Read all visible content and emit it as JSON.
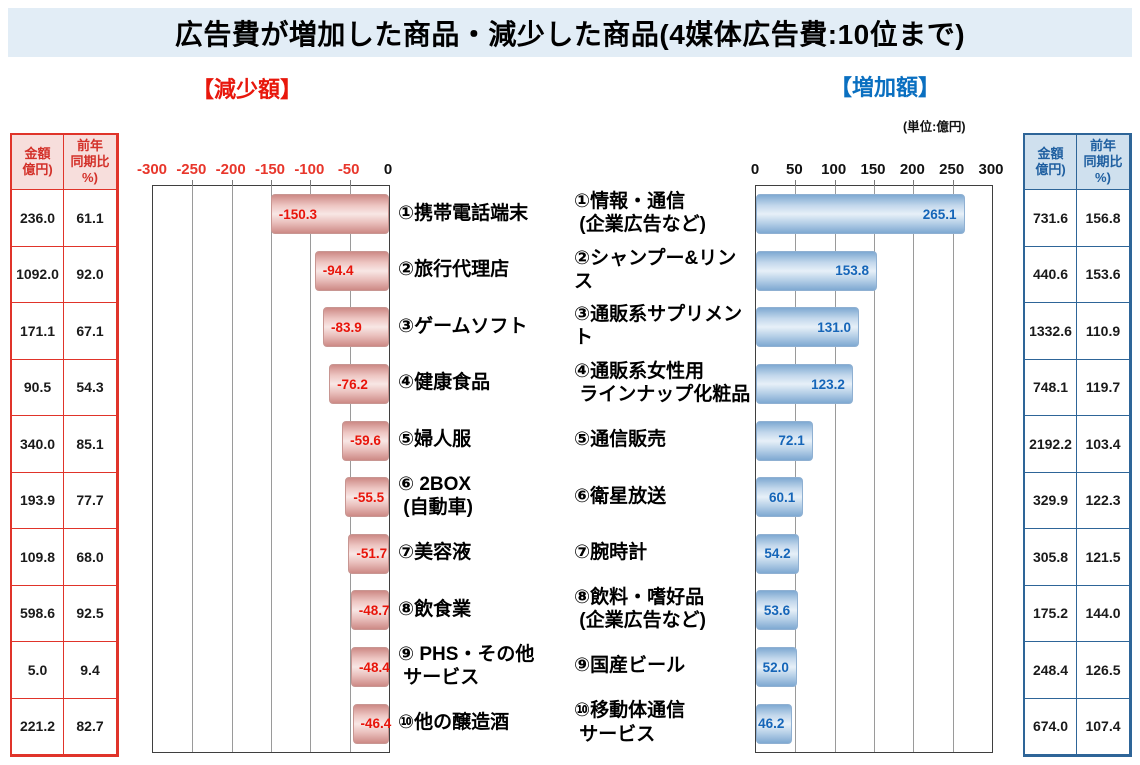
{
  "title": "広告費が増加した商品・減少した商品(4媒体広告費:10位まで)",
  "unit_label": "(単位:億円)",
  "colors": {
    "decrease_accent": "#e8170c",
    "increase_accent": "#0a6fc0",
    "decrease_table_border": "#e0342a",
    "increase_table_border": "#2e6598",
    "decrease_bar": "#e8b9b5",
    "increase_bar": "#a9c7e4",
    "title_band_bg": "#e2edf6"
  },
  "chart_data": [
    {
      "type": "bar",
      "orientation": "horizontal",
      "title": "【減少額】",
      "side": "decrease",
      "xlim": [
        -300,
        0
      ],
      "grid": true,
      "ticks": [
        "-300",
        "-250",
        "-200",
        "-150",
        "-100",
        "-50",
        "0"
      ],
      "categories": [
        "①携帯電話端末",
        "②旅行代理店",
        "③ゲームソフト",
        "④健康食品",
        "⑤婦人服",
        "⑥ 2BOX\n (自動車)",
        "⑦美容液",
        "⑧飲食業",
        "⑨ PHS・その他\n サービス",
        "⑩他の醸造酒"
      ],
      "values": [
        -150.3,
        -94.4,
        -83.9,
        -76.2,
        -59.6,
        -55.5,
        -51.7,
        -48.7,
        -48.4,
        -46.4
      ],
      "value_labels": [
        "-150.3",
        "-94.4",
        "-83.9",
        "-76.2",
        "-59.6",
        "-55.5",
        "-51.7",
        "-48.7",
        "-48.4",
        "-46.4"
      ],
      "side_table": {
        "headers": [
          "金額\n億円)",
          "前年\n同期比\n%)"
        ],
        "rows": [
          [
            "236.0",
            "61.1"
          ],
          [
            "1092.0",
            "92.0"
          ],
          [
            "171.1",
            "67.1"
          ],
          [
            "90.5",
            "54.3"
          ],
          [
            "340.0",
            "85.1"
          ],
          [
            "193.9",
            "77.7"
          ],
          [
            "109.8",
            "68.0"
          ],
          [
            "598.6",
            "92.5"
          ],
          [
            "5.0",
            "9.4"
          ],
          [
            "221.2",
            "82.7"
          ]
        ]
      }
    },
    {
      "type": "bar",
      "orientation": "horizontal",
      "title": "【増加額】",
      "side": "increase",
      "xlim": [
        0,
        300
      ],
      "grid": true,
      "ticks": [
        "0",
        "50",
        "100",
        "150",
        "200",
        "250",
        "300"
      ],
      "categories": [
        "①情報・通信\n (企業広告など)",
        "②シャンプー&リンス",
        "③通販系サプリメント",
        "④通販系女性用\n ラインナップ化粧品",
        "⑤通信販売",
        "⑥衛星放送",
        "⑦腕時計",
        "⑧飲料・嗜好品\n (企業広告など)",
        "⑨国産ビール",
        "⑩移動体通信\n サービス"
      ],
      "values": [
        265.1,
        153.8,
        131.0,
        123.2,
        72.1,
        60.1,
        54.2,
        53.6,
        52.0,
        46.2
      ],
      "value_labels": [
        "265.1",
        "153.8",
        "131.0",
        "123.2",
        "72.1",
        "60.1",
        "54.2",
        "53.6",
        "52.0",
        "46.2"
      ],
      "side_table": {
        "headers": [
          "金額\n億円)",
          "前年\n同期比\n%)"
        ],
        "rows": [
          [
            "731.6",
            "156.8"
          ],
          [
            "440.6",
            "153.6"
          ],
          [
            "1332.6",
            "110.9"
          ],
          [
            "748.1",
            "119.7"
          ],
          [
            "2192.2",
            "103.4"
          ],
          [
            "329.9",
            "122.3"
          ],
          [
            "305.8",
            "121.5"
          ],
          [
            "175.2",
            "144.0"
          ],
          [
            "248.4",
            "126.5"
          ],
          [
            "674.0",
            "107.4"
          ]
        ]
      }
    }
  ]
}
